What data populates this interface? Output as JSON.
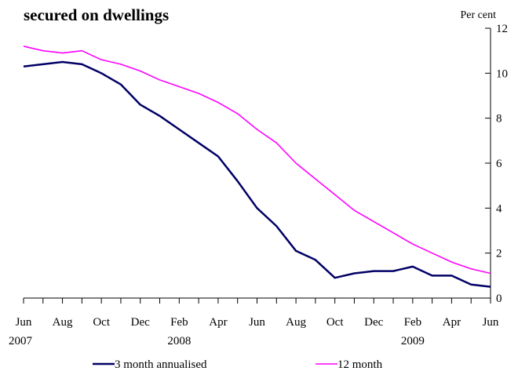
{
  "chart_data": {
    "type": "line",
    "title": "secured on dwellings",
    "ylabel": "Per cent",
    "ylim": [
      0,
      12
    ],
    "yticks": [
      0,
      2,
      4,
      6,
      8,
      10,
      12
    ],
    "x": [
      "2007-06",
      "2007-07",
      "2007-08",
      "2007-09",
      "2007-10",
      "2007-11",
      "2007-12",
      "2008-01",
      "2008-02",
      "2008-03",
      "2008-04",
      "2008-05",
      "2008-06",
      "2008-07",
      "2008-08",
      "2008-09",
      "2008-10",
      "2008-11",
      "2008-12",
      "2009-01",
      "2009-02",
      "2009-03",
      "2009-04",
      "2009-05",
      "2009-06"
    ],
    "xtick_labels": [
      {
        "month": "Jun",
        "year": "2007"
      },
      {
        "month": "Aug",
        "year": ""
      },
      {
        "month": "Oct",
        "year": ""
      },
      {
        "month": "Dec",
        "year": ""
      },
      {
        "month": "Feb",
        "year": "2008"
      },
      {
        "month": "Apr",
        "year": ""
      },
      {
        "month": "Jun",
        "year": ""
      },
      {
        "month": "Aug",
        "year": ""
      },
      {
        "month": "Oct",
        "year": ""
      },
      {
        "month": "Dec",
        "year": ""
      },
      {
        "month": "Feb",
        "year": "2009"
      },
      {
        "month": "Apr",
        "year": ""
      },
      {
        "month": "Jun",
        "year": ""
      }
    ],
    "grid": false,
    "legend_position": "bottom",
    "series": [
      {
        "name": "3 month annualised",
        "color": "#000066",
        "values": [
          10.3,
          10.4,
          10.5,
          10.4,
          10.0,
          9.5,
          8.6,
          8.1,
          7.5,
          6.9,
          6.3,
          5.2,
          4.0,
          3.2,
          2.1,
          1.7,
          0.9,
          1.1,
          1.2,
          1.2,
          1.4,
          1.0,
          1.0,
          0.6,
          0.5
        ]
      },
      {
        "name": "12 month",
        "color": "#ff00ff",
        "values": [
          11.2,
          11.0,
          10.9,
          11.0,
          10.6,
          10.4,
          10.1,
          9.7,
          9.4,
          9.1,
          8.7,
          8.2,
          7.5,
          6.9,
          6.0,
          5.3,
          4.6,
          3.9,
          3.4,
          2.9,
          2.4,
          2.0,
          1.6,
          1.3,
          1.1
        ]
      }
    ]
  }
}
